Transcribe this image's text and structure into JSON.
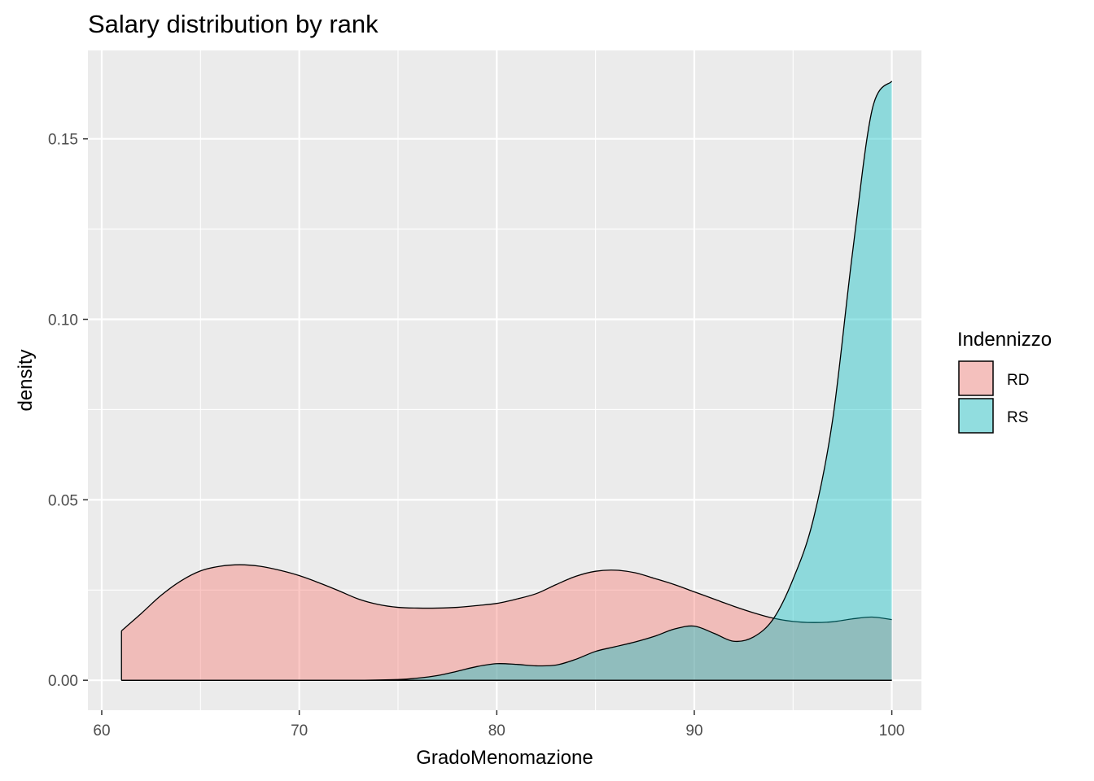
{
  "chart_data": {
    "type": "area",
    "title": "Salary distribution by rank",
    "xlabel": "GradoMenomazione",
    "ylabel": "density",
    "xlim": [
      59.3,
      101.5
    ],
    "ylim": [
      -0.0083,
      0.1745
    ],
    "x_ticks": [
      60,
      70,
      80,
      90,
      100
    ],
    "x_tick_labels": [
      "60",
      "70",
      "80",
      "90",
      "100"
    ],
    "y_ticks": [
      0.0,
      0.05,
      0.1,
      0.15
    ],
    "y_tick_labels": [
      "0.00",
      "0.05",
      "0.10",
      "0.15"
    ],
    "grid": true,
    "legend": {
      "title": "Indennizzo",
      "position": "right"
    },
    "series": [
      {
        "name": "RD",
        "color": "#F8766D",
        "x": [
          61,
          62,
          63,
          64,
          65,
          66,
          67,
          68,
          69,
          70,
          71,
          72,
          73,
          74,
          75,
          76,
          77,
          78,
          79,
          80,
          81,
          82,
          83,
          84,
          85,
          86,
          87,
          88,
          89,
          90,
          91,
          92,
          93,
          94,
          95,
          96,
          97,
          98,
          99,
          100
        ],
        "values": [
          0.0137,
          0.0185,
          0.0235,
          0.0275,
          0.0303,
          0.0316,
          0.032,
          0.0316,
          0.0305,
          0.029,
          0.027,
          0.0248,
          0.0225,
          0.021,
          0.0202,
          0.02,
          0.02,
          0.0202,
          0.0207,
          0.0213,
          0.0225,
          0.024,
          0.0265,
          0.0288,
          0.0302,
          0.0305,
          0.0298,
          0.0282,
          0.0265,
          0.0245,
          0.0225,
          0.0205,
          0.0187,
          0.0172,
          0.0163,
          0.016,
          0.0162,
          0.017,
          0.0175,
          0.0168
        ]
      },
      {
        "name": "RS",
        "color": "#00BFC4",
        "x": [
          61,
          65,
          70,
          73,
          75,
          76,
          77,
          78,
          79,
          80,
          81,
          82,
          83,
          84,
          85,
          86,
          87,
          88,
          89,
          90,
          91,
          92,
          93,
          94,
          95,
          96,
          97,
          98,
          99,
          100
        ],
        "values": [
          0.0,
          0.0,
          0.0,
          0.0,
          0.0002,
          0.0006,
          0.0013,
          0.0025,
          0.0038,
          0.0046,
          0.0044,
          0.004,
          0.0042,
          0.0058,
          0.008,
          0.0093,
          0.0106,
          0.0122,
          0.0142,
          0.015,
          0.013,
          0.0108,
          0.012,
          0.017,
          0.028,
          0.044,
          0.072,
          0.118,
          0.158,
          0.166
        ]
      }
    ]
  }
}
